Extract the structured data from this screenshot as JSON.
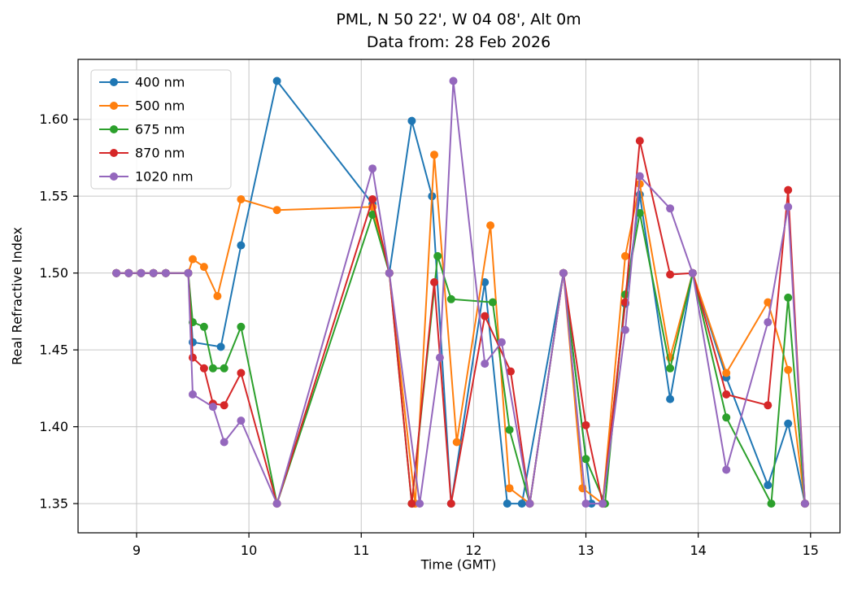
{
  "chart_data": {
    "type": "line",
    "title_line1": "PML, N 50 22', W 04 08', Alt 0m",
    "title_line2": "Data from: 28 Feb 2026",
    "xlabel": "Time (GMT)",
    "ylabel": "Real Refractive Index",
    "xlim": [
      8.479,
      15.262
    ],
    "ylim": [
      1.331,
      1.639
    ],
    "xticks": [
      9,
      10,
      11,
      12,
      13,
      14,
      15
    ],
    "yticks": [
      1.35,
      1.4,
      1.45,
      1.5,
      1.55,
      1.6
    ],
    "grid": true,
    "grid_color": "#c6c6c6",
    "frame_color": "#000000",
    "legend_position": "upper-left",
    "marker": "circle",
    "series": [
      {
        "name": "400 nm",
        "color": "#1f77b4",
        "points": [
          [
            8.82,
            1.5
          ],
          [
            8.93,
            1.5
          ],
          [
            9.04,
            1.5
          ],
          [
            9.15,
            1.5
          ],
          [
            9.26,
            1.5
          ],
          [
            9.46,
            1.5
          ],
          [
            9.5,
            1.455
          ],
          [
            9.75,
            1.452
          ],
          [
            9.93,
            1.518
          ],
          [
            10.25,
            1.625
          ],
          [
            11.1,
            1.545
          ],
          [
            11.25,
            1.5
          ],
          [
            11.45,
            1.599
          ],
          [
            11.63,
            1.55
          ],
          [
            11.8,
            1.35
          ],
          [
            12.1,
            1.494
          ],
          [
            12.3,
            1.35
          ],
          [
            12.43,
            1.35
          ],
          [
            12.8,
            1.5
          ],
          [
            13.05,
            1.35
          ],
          [
            13.15,
            1.35
          ],
          [
            13.35,
            1.48
          ],
          [
            13.48,
            1.551
          ],
          [
            13.75,
            1.418
          ],
          [
            13.95,
            1.5
          ],
          [
            14.25,
            1.432
          ],
          [
            14.62,
            1.362
          ],
          [
            14.8,
            1.402
          ],
          [
            14.95,
            1.35
          ]
        ]
      },
      {
        "name": "500 nm",
        "color": "#ff7f0e",
        "points": [
          [
            8.82,
            1.5
          ],
          [
            8.93,
            1.5
          ],
          [
            9.04,
            1.5
          ],
          [
            9.15,
            1.5
          ],
          [
            9.26,
            1.5
          ],
          [
            9.46,
            1.5
          ],
          [
            9.5,
            1.509
          ],
          [
            9.6,
            1.504
          ],
          [
            9.72,
            1.485
          ],
          [
            9.93,
            1.548
          ],
          [
            10.25,
            1.541
          ],
          [
            11.1,
            1.543
          ],
          [
            11.25,
            1.5
          ],
          [
            11.48,
            1.35
          ],
          [
            11.65,
            1.577
          ],
          [
            11.85,
            1.39
          ],
          [
            12.15,
            1.531
          ],
          [
            12.32,
            1.36
          ],
          [
            12.5,
            1.35
          ],
          [
            12.8,
            1.5
          ],
          [
            12.97,
            1.36
          ],
          [
            13.15,
            1.35
          ],
          [
            13.35,
            1.511
          ],
          [
            13.48,
            1.558
          ],
          [
            13.75,
            1.445
          ],
          [
            13.95,
            1.5
          ],
          [
            14.25,
            1.435
          ],
          [
            14.62,
            1.481
          ],
          [
            14.8,
            1.437
          ],
          [
            14.95,
            1.35
          ]
        ]
      },
      {
        "name": "675 nm",
        "color": "#2ca02c",
        "points": [
          [
            8.82,
            1.5
          ],
          [
            8.93,
            1.5
          ],
          [
            9.04,
            1.5
          ],
          [
            9.15,
            1.5
          ],
          [
            9.26,
            1.5
          ],
          [
            9.46,
            1.5
          ],
          [
            9.5,
            1.468
          ],
          [
            9.6,
            1.465
          ],
          [
            9.68,
            1.438
          ],
          [
            9.78,
            1.438
          ],
          [
            9.93,
            1.465
          ],
          [
            10.25,
            1.35
          ],
          [
            11.1,
            1.538
          ],
          [
            11.25,
            1.5
          ],
          [
            11.45,
            1.35
          ],
          [
            11.68,
            1.511
          ],
          [
            11.8,
            1.483
          ],
          [
            12.17,
            1.481
          ],
          [
            12.32,
            1.398
          ],
          [
            12.5,
            1.35
          ],
          [
            12.8,
            1.5
          ],
          [
            13.0,
            1.379
          ],
          [
            13.17,
            1.35
          ],
          [
            13.35,
            1.486
          ],
          [
            13.48,
            1.539
          ],
          [
            13.75,
            1.438
          ],
          [
            13.95,
            1.5
          ],
          [
            14.25,
            1.406
          ],
          [
            14.65,
            1.35
          ],
          [
            14.8,
            1.484
          ],
          [
            14.95,
            1.35
          ]
        ]
      },
      {
        "name": "870 nm",
        "color": "#d62728",
        "points": [
          [
            8.82,
            1.5
          ],
          [
            8.93,
            1.5
          ],
          [
            9.04,
            1.5
          ],
          [
            9.15,
            1.5
          ],
          [
            9.26,
            1.5
          ],
          [
            9.46,
            1.5
          ],
          [
            9.5,
            1.445
          ],
          [
            9.6,
            1.438
          ],
          [
            9.68,
            1.415
          ],
          [
            9.78,
            1.414
          ],
          [
            9.93,
            1.435
          ],
          [
            10.25,
            1.35
          ],
          [
            11.1,
            1.548
          ],
          [
            11.25,
            1.5
          ],
          [
            11.45,
            1.35
          ],
          [
            11.65,
            1.494
          ],
          [
            11.8,
            1.35
          ],
          [
            12.1,
            1.472
          ],
          [
            12.33,
            1.436
          ],
          [
            12.5,
            1.35
          ],
          [
            12.8,
            1.5
          ],
          [
            13.0,
            1.401
          ],
          [
            13.15,
            1.35
          ],
          [
            13.35,
            1.481
          ],
          [
            13.48,
            1.586
          ],
          [
            13.75,
            1.499
          ],
          [
            13.95,
            1.5
          ],
          [
            14.25,
            1.421
          ],
          [
            14.62,
            1.414
          ],
          [
            14.8,
            1.554
          ],
          [
            14.95,
            1.35
          ]
        ]
      },
      {
        "name": "1020 nm",
        "color": "#9467bd",
        "points": [
          [
            8.82,
            1.5
          ],
          [
            8.93,
            1.5
          ],
          [
            9.04,
            1.5
          ],
          [
            9.15,
            1.5
          ],
          [
            9.26,
            1.5
          ],
          [
            9.46,
            1.5
          ],
          [
            9.5,
            1.421
          ],
          [
            9.68,
            1.413
          ],
          [
            9.78,
            1.39
          ],
          [
            9.93,
            1.404
          ],
          [
            10.25,
            1.35
          ],
          [
            11.1,
            1.568
          ],
          [
            11.25,
            1.5
          ],
          [
            11.52,
            1.35
          ],
          [
            11.7,
            1.445
          ],
          [
            11.82,
            1.625
          ],
          [
            12.1,
            1.441
          ],
          [
            12.25,
            1.455
          ],
          [
            12.5,
            1.35
          ],
          [
            12.8,
            1.5
          ],
          [
            13.0,
            1.35
          ],
          [
            13.15,
            1.35
          ],
          [
            13.35,
            1.463
          ],
          [
            13.48,
            1.563
          ],
          [
            13.75,
            1.542
          ],
          [
            13.95,
            1.5
          ],
          [
            14.25,
            1.372
          ],
          [
            14.62,
            1.468
          ],
          [
            14.8,
            1.543
          ],
          [
            14.95,
            1.35
          ]
        ]
      }
    ]
  }
}
